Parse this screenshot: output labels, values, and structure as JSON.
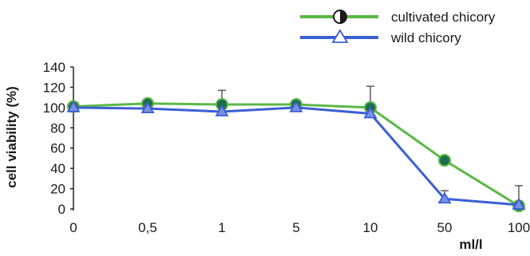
{
  "chart_data": {
    "type": "line",
    "categories": [
      "0",
      "0,5",
      "1",
      "5",
      "10",
      "50",
      "100"
    ],
    "xlabel": "ml/l",
    "ylabel": "cell viability (%)",
    "ylim": [
      0,
      140
    ],
    "yticks": [
      0,
      20,
      40,
      60,
      80,
      100,
      120,
      140
    ],
    "grid": false,
    "legend_position": "top-right",
    "series": [
      {
        "name": "cultivated chicory",
        "marker": "circle",
        "color": "#5bb846",
        "marker_fill": "#1d6e4e",
        "values": [
          101,
          104,
          103,
          103,
          100,
          48,
          3
        ],
        "errors": [
          3,
          3,
          14,
          3,
          21,
          4,
          20
        ]
      },
      {
        "name": "wild chicory",
        "marker": "triangle",
        "color": "#3b5fd4",
        "marker_fill": "#7a90e8",
        "values": [
          100,
          99,
          96,
          100,
          94,
          10,
          4
        ],
        "errors": [
          3,
          3,
          3,
          3,
          3,
          8,
          3
        ]
      }
    ]
  }
}
